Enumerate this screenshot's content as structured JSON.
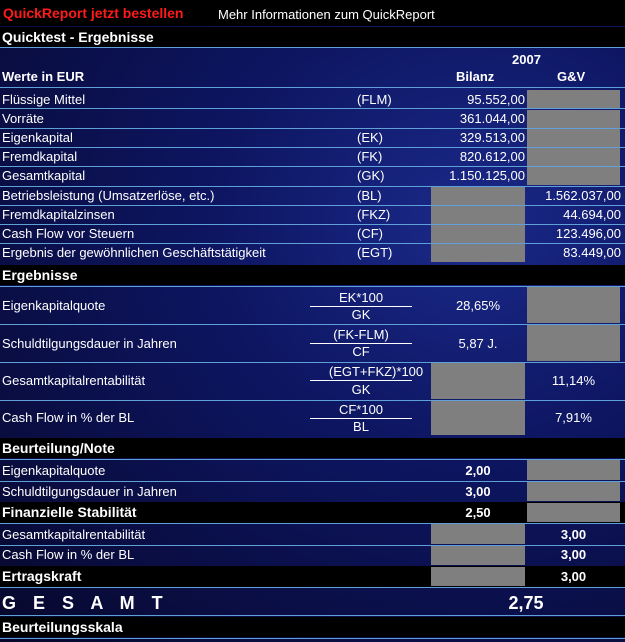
{
  "links": {
    "order": "QuickReport jetzt bestellen",
    "info": "Mehr Informationen zum QuickReport"
  },
  "quicktest": {
    "title": "Quicktest - Ergebnisse",
    "year": "2007",
    "values_label": "Werte in EUR",
    "col_bilanz": "Bilanz",
    "col_guv": "G&V",
    "rows": [
      {
        "label": "Flüssige Mittel",
        "abbr": "(FLM)",
        "bilanz": "95.552,00",
        "guv": ""
      },
      {
        "label": "Vorräte",
        "abbr": "",
        "bilanz": "361.044,00",
        "guv": ""
      },
      {
        "label": "Eigenkapital",
        "abbr": "(EK)",
        "bilanz": "329.513,00",
        "guv": ""
      },
      {
        "label": "Fremdkapital",
        "abbr": "(FK)",
        "bilanz": "820.612,00",
        "guv": ""
      },
      {
        "label": "Gesamtkapital",
        "abbr": "(GK)",
        "bilanz": "1.150.125,00",
        "guv": ""
      },
      {
        "label": "Betriebsleistung (Umsatzerlöse, etc.)",
        "abbr": "(BL)",
        "bilanz": "",
        "guv": "1.562.037,00"
      },
      {
        "label": "Fremdkapitalzinsen",
        "abbr": "(FKZ)",
        "bilanz": "",
        "guv": "44.694,00"
      },
      {
        "label": "Cash Flow vor Steuern",
        "abbr": "(CF)",
        "bilanz": "",
        "guv": "123.496,00"
      },
      {
        "label": "Ergebnis der gewöhnlichen Geschäftstätigkeit",
        "abbr": "(EGT)",
        "bilanz": "",
        "guv": "83.449,00"
      }
    ]
  },
  "ergebnisse": {
    "title": "Ergebnisse",
    "rows": [
      {
        "label": "Eigenkapitalquote",
        "num": "EK*100",
        "den": "GK",
        "bilanz": "28,65%",
        "guv": ""
      },
      {
        "label": "Schuldtilgungsdauer in Jahren",
        "num": "(FK-FLM)",
        "den": "CF",
        "bilanz": "5,87 J.",
        "guv": ""
      },
      {
        "label": "Gesamtkapitalrentabilität",
        "num": "(EGT+FKZ)*100",
        "den": "GK",
        "bilanz": "",
        "guv": "11,14%"
      },
      {
        "label": "Cash Flow in % der BL",
        "num": "CF*100",
        "den": "BL",
        "bilanz": "",
        "guv": "7,91%"
      }
    ]
  },
  "beurteilung": {
    "title": "Beurteilung/Note",
    "ekq_label": "Eigenkapitalquote",
    "ekq_value": "2,00",
    "sd_label": "Schuldtilgungsdauer in Jahren",
    "sd_value": "3,00",
    "fs_label": "Finanzielle Stabilität",
    "fs_value": "2,50",
    "gkr_label": "Gesamtkapitalrentabilität",
    "gkr_value": "3,00",
    "cf_label": "Cash Flow in % der BL",
    "cf_value": "3,00",
    "ek_label": "Ertragskraft",
    "ek_value": "3,00",
    "gesamt_label": "G E S A M T",
    "gesamt_value": "2,75"
  },
  "skala": {
    "title": "Beurteilungsskala"
  }
}
